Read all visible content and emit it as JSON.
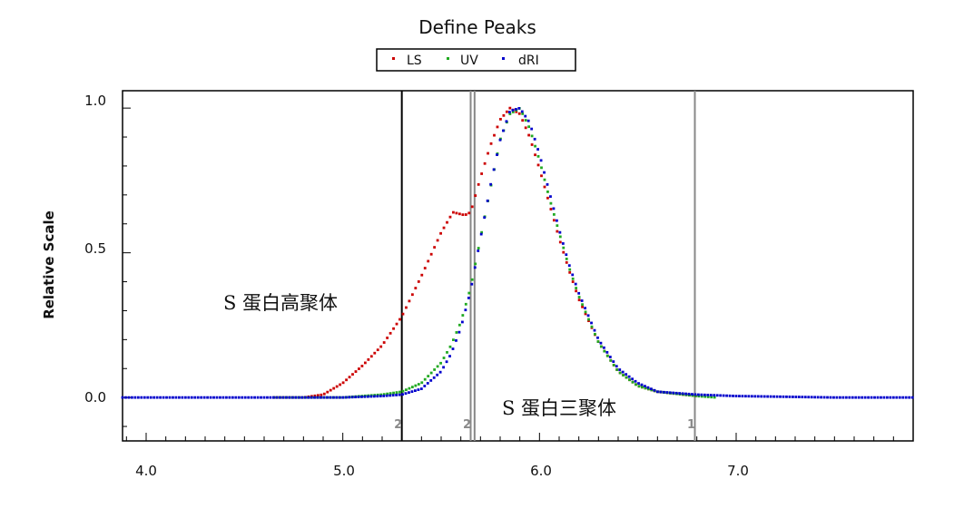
{
  "chart_data": {
    "type": "scatter",
    "title": "Define Peaks",
    "xlabel": "",
    "ylabel": "Relative Scale",
    "xlim": [
      3.88,
      7.9
    ],
    "ylim": [
      -0.15,
      1.06
    ],
    "xticks": [
      "4.0",
      "5.0",
      "6.0",
      "7.0"
    ],
    "yticks": [
      "0.0",
      "0.5",
      "1.0"
    ],
    "legend_position": "top-center",
    "grid": false,
    "series": [
      {
        "name": "LS",
        "color": "#cc0000",
        "x": [
          4.65,
          4.8,
          4.9,
          5.0,
          5.1,
          5.2,
          5.3,
          5.4,
          5.5,
          5.56,
          5.62,
          5.65,
          5.7,
          5.75,
          5.8,
          5.85,
          5.9,
          5.95,
          6.0,
          6.05,
          6.1,
          6.15,
          6.2,
          6.3,
          6.4,
          6.5,
          6.6,
          6.8
        ],
        "y": [
          0.0,
          0.0,
          0.01,
          0.05,
          0.11,
          0.18,
          0.28,
          0.42,
          0.57,
          0.64,
          0.63,
          0.64,
          0.76,
          0.87,
          0.96,
          1.0,
          0.98,
          0.9,
          0.79,
          0.67,
          0.55,
          0.44,
          0.34,
          0.19,
          0.09,
          0.04,
          0.02,
          0.005
        ]
      },
      {
        "name": "UV",
        "color": "#22aa22",
        "x": [
          4.65,
          5.0,
          5.2,
          5.3,
          5.4,
          5.5,
          5.55,
          5.6,
          5.65,
          5.7,
          5.75,
          5.8,
          5.85,
          5.9,
          5.95,
          6.0,
          6.05,
          6.1,
          6.15,
          6.2,
          6.3,
          6.4,
          6.5,
          6.6,
          6.8,
          6.9
        ],
        "y": [
          0.0,
          0.0,
          0.01,
          0.02,
          0.05,
          0.12,
          0.18,
          0.26,
          0.38,
          0.55,
          0.72,
          0.89,
          0.98,
          1.0,
          0.93,
          0.82,
          0.69,
          0.57,
          0.45,
          0.35,
          0.19,
          0.09,
          0.04,
          0.02,
          0.005,
          0.0
        ]
      },
      {
        "name": "dRI",
        "color": "#0000cc",
        "x": [
          3.88,
          4.5,
          5.0,
          5.2,
          5.3,
          5.4,
          5.5,
          5.55,
          5.6,
          5.65,
          5.7,
          5.75,
          5.8,
          5.85,
          5.9,
          5.95,
          6.0,
          6.05,
          6.1,
          6.15,
          6.2,
          6.3,
          6.4,
          6.5,
          6.6,
          6.8,
          7.0,
          7.5,
          7.9
        ],
        "y": [
          0.0,
          0.0,
          0.0,
          0.005,
          0.01,
          0.03,
          0.09,
          0.15,
          0.24,
          0.37,
          0.55,
          0.73,
          0.89,
          0.99,
          1.0,
          0.95,
          0.84,
          0.71,
          0.58,
          0.46,
          0.36,
          0.2,
          0.1,
          0.05,
          0.02,
          0.01,
          0.005,
          0.0,
          0.0
        ]
      }
    ],
    "peak_markers": [
      {
        "x": 5.3,
        "label": "2",
        "color": "#000000"
      },
      {
        "x": 5.65,
        "label": "2",
        "color": "#888888"
      },
      {
        "x": 5.67,
        "label": "",
        "color": "#888888"
      },
      {
        "x": 6.79,
        "label": "1",
        "color": "#888888"
      }
    ],
    "annotations": [
      {
        "text": "S 蛋白高聚体",
        "x": 4.3,
        "y": 0.31
      },
      {
        "text": "S 蛋白三聚体",
        "x": 5.73,
        "y": -0.04
      }
    ]
  }
}
